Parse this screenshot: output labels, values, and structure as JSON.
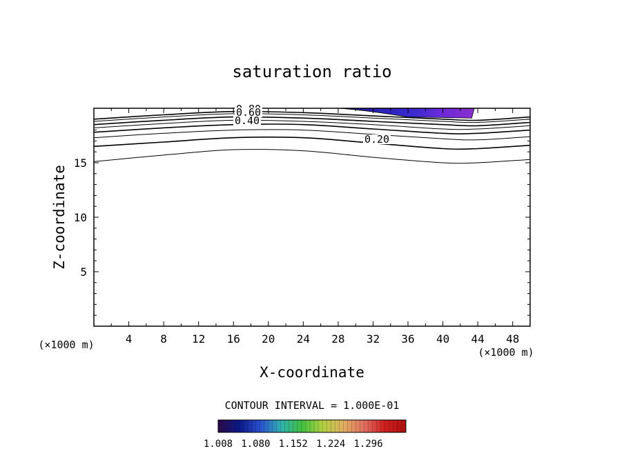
{
  "chart_data": {
    "type": "contour",
    "title": "saturation ratio",
    "xlabel": "X-coordinate",
    "ylabel": "Z-coordinate",
    "x_unit": "(×1000 m)",
    "x_unit_right": "(×1000 m)",
    "xlim": [
      0,
      50
    ],
    "ylim": [
      0,
      20
    ],
    "x_ticks": [
      4,
      8,
      12,
      16,
      20,
      24,
      28,
      32,
      36,
      40,
      44,
      48
    ],
    "y_ticks": [
      5,
      10,
      15
    ],
    "contour_interval_text": "CONTOUR INTERVAL = 1.000E-01",
    "contour_labels": [
      "0.80",
      "0.60",
      "0.40",
      "0.20"
    ],
    "contours": [
      {
        "level": 0.1,
        "x": [
          0,
          8,
          16,
          24,
          32,
          40,
          44,
          50
        ],
        "z": [
          15.1,
          15.7,
          16.2,
          16.1,
          15.5,
          15.0,
          15.0,
          15.3
        ]
      },
      {
        "level": 0.2,
        "x": [
          0,
          8,
          16,
          24,
          32,
          40,
          44,
          50
        ],
        "z": [
          16.5,
          16.9,
          17.3,
          17.3,
          16.8,
          16.3,
          16.3,
          16.6
        ]
      },
      {
        "level": 0.3,
        "x": [
          0,
          8,
          16,
          24,
          32,
          40,
          44,
          50
        ],
        "z": [
          17.3,
          17.7,
          18.0,
          18.0,
          17.6,
          17.2,
          17.1,
          17.4
        ]
      },
      {
        "level": 0.4,
        "x": [
          0,
          8,
          16,
          24,
          32,
          40,
          44,
          50
        ],
        "z": [
          17.8,
          18.2,
          18.5,
          18.5,
          18.1,
          17.7,
          17.7,
          18.0
        ]
      },
      {
        "level": 0.5,
        "x": [
          0,
          8,
          16,
          24,
          32,
          40,
          44,
          50
        ],
        "z": [
          18.2,
          18.6,
          18.9,
          18.8,
          18.5,
          18.1,
          18.1,
          18.4
        ]
      },
      {
        "level": 0.6,
        "x": [
          0,
          8,
          16,
          24,
          32,
          40,
          44,
          50
        ],
        "z": [
          18.5,
          18.9,
          19.2,
          19.1,
          18.8,
          18.5,
          18.4,
          18.7
        ]
      },
      {
        "level": 0.7,
        "x": [
          0,
          8,
          16,
          24,
          32,
          40,
          44,
          50
        ],
        "z": [
          18.8,
          19.2,
          19.5,
          19.4,
          19.1,
          18.8,
          18.7,
          19.0
        ]
      },
      {
        "level": 0.8,
        "x": [
          0,
          8,
          16,
          24,
          32,
          40,
          44,
          50
        ],
        "z": [
          19.0,
          19.4,
          19.7,
          19.6,
          19.3,
          19.0,
          18.9,
          19.2
        ]
      }
    ],
    "shaded_region": {
      "x_start": 28,
      "x_end": 43.6,
      "z_bottom": 19.1,
      "z_top": 20
    },
    "colorbar": {
      "min": 1.008,
      "max": 1.368,
      "labels": [
        "1.008",
        "1.080",
        "1.152",
        "1.224",
        "1.296"
      ],
      "colors": [
        "#2a0a4a",
        "#0a1a8a",
        "#2a50d0",
        "#30b0b0",
        "#40c040",
        "#b0d040",
        "#e0b060",
        "#e07060",
        "#d02020",
        "#b01010"
      ]
    }
  }
}
